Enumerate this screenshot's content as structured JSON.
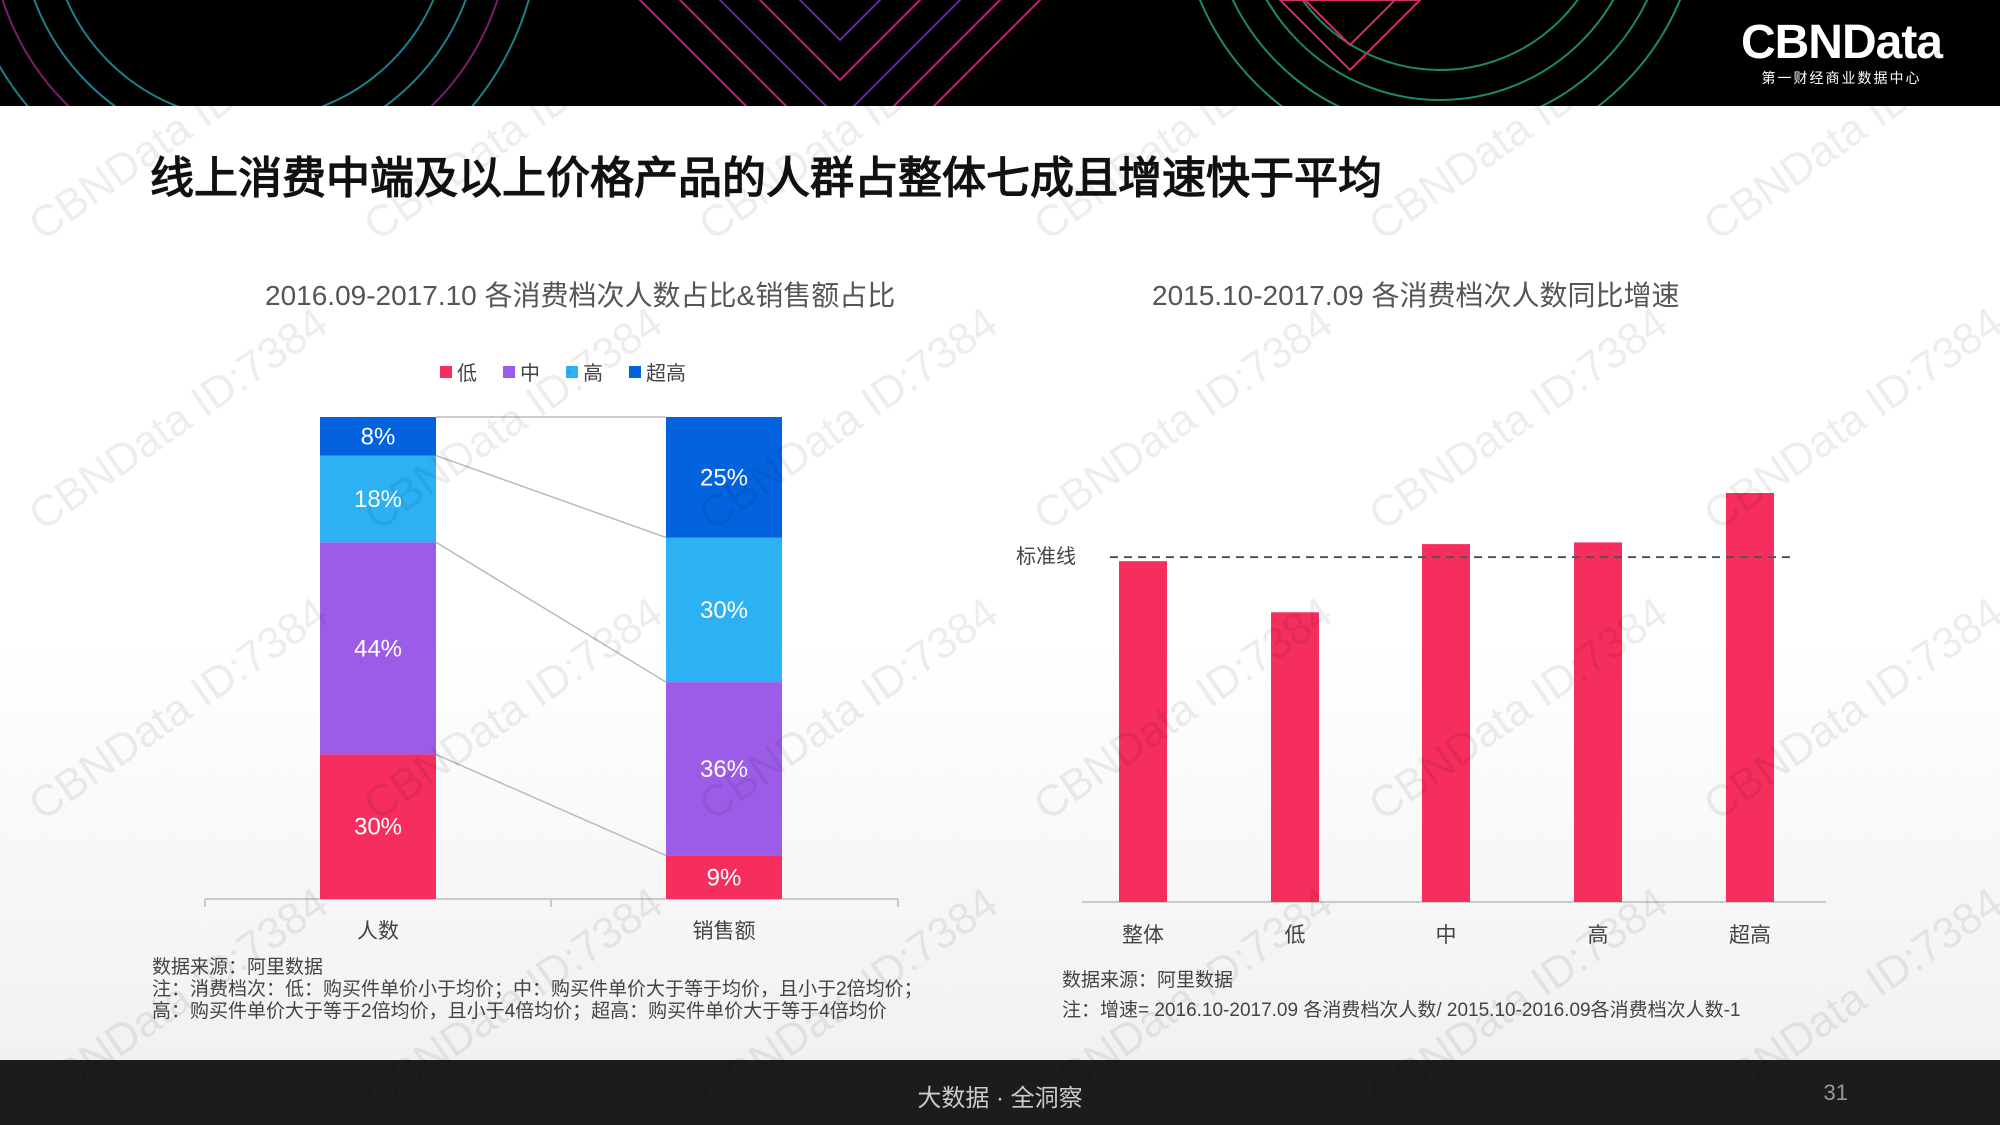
{
  "brand": {
    "name": "CBNData",
    "subtitle": "第一财经商业数据中心"
  },
  "headline": "线上消费中端及以上价格产品的人群占整体七成且增速快于平均",
  "watermark_text": "CBNData ID:7384",
  "footer": {
    "slogan": "大数据 · 全洞察",
    "page": "31"
  },
  "colors": {
    "low": "#f52e5d",
    "mid": "#9d5ce8",
    "high": "#2cb1f2",
    "super": "#0363df",
    "bar": "#f52e5d"
  },
  "chart_data": [
    {
      "type": "bar",
      "stacked": true,
      "normalized": true,
      "title": "2016.09-2017.10  各消费档次人数占比&销售额占比",
      "categories": [
        "人数",
        "销售额"
      ],
      "series": [
        {
          "name": "低",
          "values": [
            30,
            9
          ],
          "labels": [
            "30%",
            "9%"
          ]
        },
        {
          "name": "中",
          "values": [
            44,
            36
          ],
          "labels": [
            "44%",
            "36%"
          ]
        },
        {
          "name": "高",
          "values": [
            18,
            30
          ],
          "labels": [
            "18%",
            "30%"
          ]
        },
        {
          "name": "超高",
          "values": [
            8,
            25
          ],
          "labels": [
            "8%",
            "25%"
          ]
        }
      ],
      "legend_position": "top",
      "ylim": [
        0,
        100
      ]
    },
    {
      "type": "bar",
      "title": "2015.10-2017.09  各消费档次人数同比增速",
      "categories": [
        "整体",
        "低",
        "中",
        "高",
        "超高"
      ],
      "values": [
        1.0,
        0.85,
        1.05,
        1.055,
        1.2
      ],
      "reference_line": {
        "label": "标准线",
        "value": 1.0
      },
      "ylim": [
        0,
        1.2
      ],
      "value_axis_labels": false
    }
  ],
  "notes_left": {
    "source": "数据来源：阿里数据",
    "note": "注：消费档次：低：购买件单价小于均价；中：购买件单价大于等于均价，且小于2倍均价；高：购买件单价大于等于2倍均价，且小于4倍均价；超高：购买件单价大于等于4倍均价"
  },
  "notes_right": {
    "source": "数据来源：阿里数据",
    "note": "注：增速= 2016.10-2017.09 各消费档次人数/ 2015.10-2016.09各消费档次人数-1"
  }
}
